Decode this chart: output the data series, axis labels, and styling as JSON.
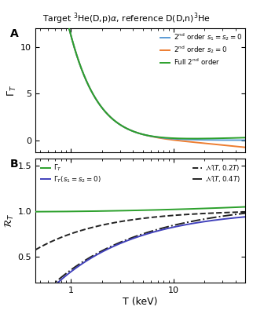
{
  "title": "Target $^3$He(D,p)$\\alpha$, reference D(D,n)$^3$He",
  "T_min": 0.45,
  "T_max": 50,
  "xlabel": "T (keV)",
  "ylabel_A": "$\\Gamma_T$",
  "ylabel_B": "$\\mathcal{R}_T$",
  "ylim_A": [
    -1.3,
    12.0
  ],
  "ylim_B": [
    0.22,
    1.58
  ],
  "yticks_A": [
    0,
    5,
    10
  ],
  "yticks_B": [
    0.5,
    1.0,
    1.5
  ],
  "c_blue": "#5b9bd5",
  "c_orange": "#ed7d31",
  "c_green": "#2ca02c",
  "c_green_B": "#2ca02c",
  "c_blue_B": "#4040bb",
  "c_dark": "#222222"
}
